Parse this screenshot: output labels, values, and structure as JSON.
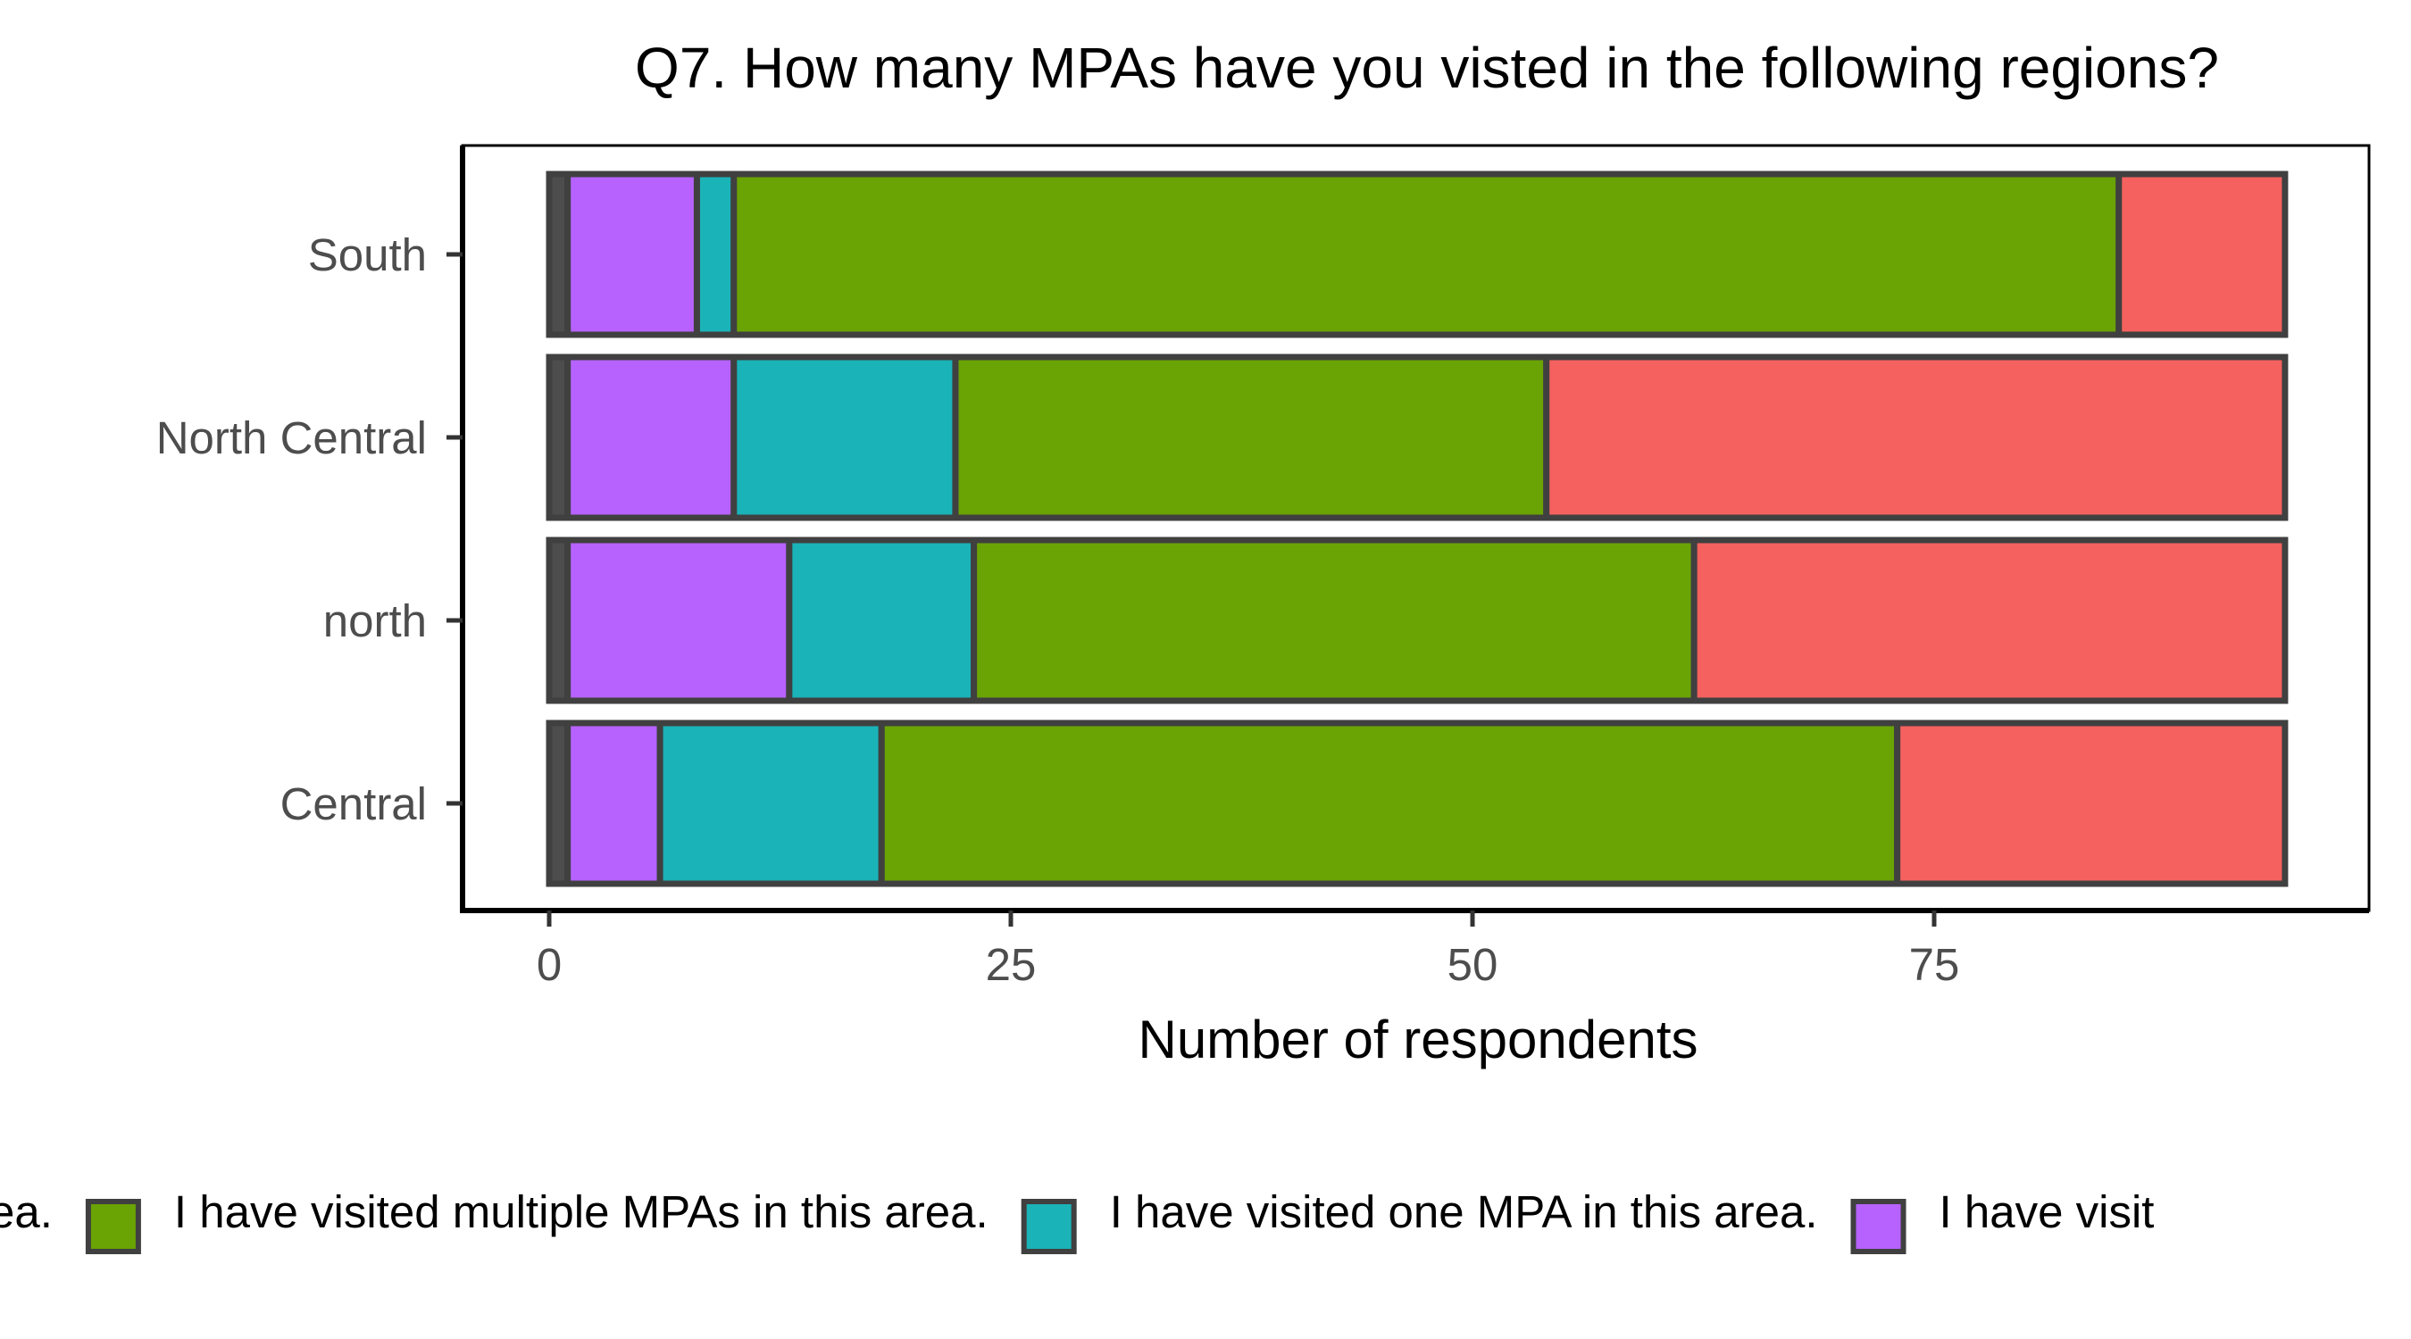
{
  "chart_data": {
    "type": "bar",
    "orientation": "horizontal",
    "stacked": true,
    "title": "Q7. How many MPAs have you visted in the following regions?",
    "xlabel": "Number of respondents",
    "ylabel": "",
    "categories": [
      "Central",
      "north",
      "North Central",
      "South"
    ],
    "xlim": [
      0,
      98
    ],
    "xticks": [
      0,
      25,
      50,
      75
    ],
    "grid": false,
    "legend_position": "bottom",
    "series": [
      {
        "name": "",
        "color": "#4d4d4d",
        "values": [
          1,
          1,
          1,
          1
        ]
      },
      {
        "name": "I have visit",
        "color": "#b762ff",
        "values": [
          5,
          12,
          9,
          7
        ]
      },
      {
        "name": "I have visited one MPA in this area.",
        "color": "#1ab3b8",
        "values": [
          12,
          10,
          12,
          2
        ]
      },
      {
        "name": "I have visited multiple MPAs in this area.",
        "color": "#6aa304",
        "values": [
          55,
          39,
          32,
          75
        ]
      },
      {
        "name": "ea.",
        "color": "#f4615e",
        "values": [
          21,
          32,
          40,
          9
        ]
      }
    ],
    "legend": [
      {
        "label": "ea.",
        "series": 4,
        "swatch": false
      },
      {
        "label": "I have visited multiple MPAs in this area.",
        "series": 3,
        "swatch": true
      },
      {
        "label": "I have visited one MPA in this area.",
        "series": 2,
        "swatch": true
      },
      {
        "label": "I have visit",
        "series": 1,
        "swatch": true
      }
    ]
  }
}
